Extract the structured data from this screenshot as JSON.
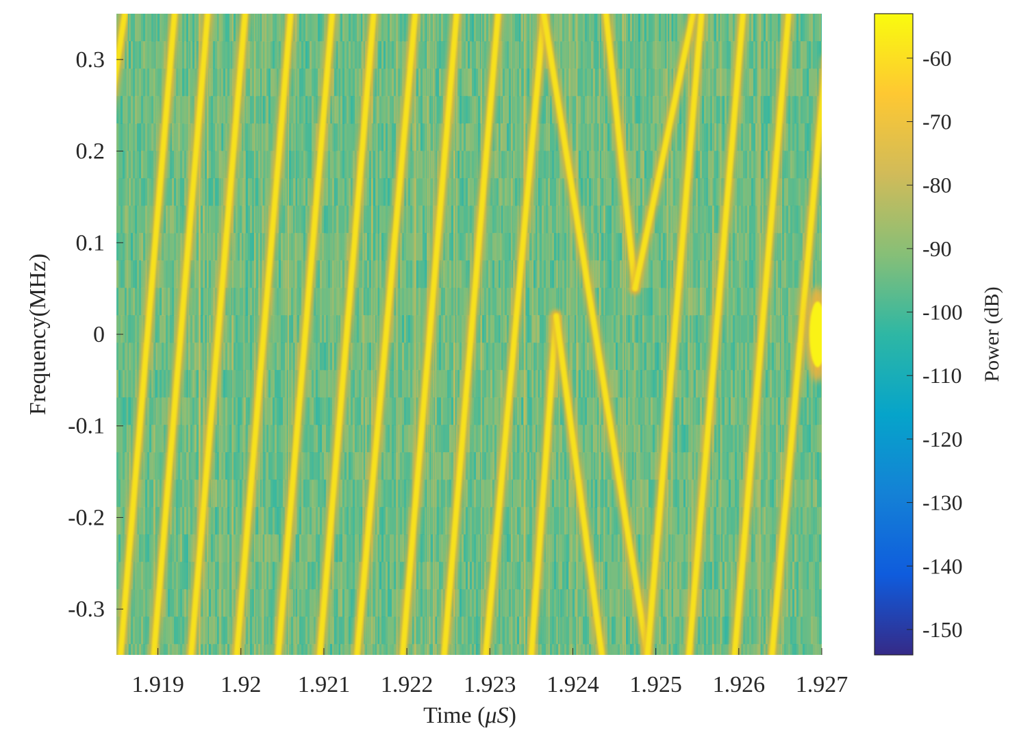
{
  "chart_data": {
    "type": "heatmap",
    "subtype": "spectrogram",
    "title": "",
    "xlabel": "Time (μS)",
    "xlabel_prefix": "Time (",
    "xlabel_mu": "μ",
    "xlabel_unit": "S",
    "xlabel_suffix": ")",
    "ylabel": "Frequency(MHz)",
    "xlim": [
      1.9185,
      1.927
    ],
    "ylim": [
      -0.35,
      0.35
    ],
    "x_ticks": [
      1.919,
      1.92,
      1.921,
      1.922,
      1.923,
      1.924,
      1.925,
      1.926,
      1.927
    ],
    "x_tick_labels": [
      "1.919",
      "1.92",
      "1.921",
      "1.922",
      "1.923",
      "1.924",
      "1.925",
      "1.926",
      "1.927"
    ],
    "y_ticks": [
      0.3,
      0.2,
      0.1,
      0,
      -0.1,
      -0.2,
      -0.3
    ],
    "y_tick_labels": [
      "0.3",
      "0.2",
      "0.1",
      "0",
      "-0.1",
      "-0.2",
      "-0.3"
    ],
    "colorbar": {
      "label": "Power (dB)",
      "clim": [
        -154,
        -53
      ],
      "ticks": [
        -60,
        -70,
        -80,
        -90,
        -100,
        -110,
        -120,
        -130,
        -140,
        -150
      ],
      "tick_labels": [
        "-60",
        "-70",
        "-80",
        "-90",
        "-100",
        "-110",
        "-120",
        "-130",
        "-140",
        "-150"
      ],
      "colormap": "parula",
      "colormap_stops": [
        "#352a87",
        "#0f5cdd",
        "#1481d6",
        "#06a4ca",
        "#2eb7a4",
        "#87bf77",
        "#d1bb59",
        "#fec832",
        "#f9fb0e"
      ]
    },
    "background_level_db": -95,
    "chirps": [
      {
        "t_start": 1.9184,
        "t_end": 1.9186,
        "f_start": 0.23,
        "f_end": 0.35
      },
      {
        "t_start": 1.91855,
        "t_end": 1.9192,
        "f_start": -0.35,
        "f_end": 0.35
      },
      {
        "t_start": 1.91895,
        "t_end": 1.9196,
        "f_start": -0.35,
        "f_end": 0.35
      },
      {
        "t_start": 1.9194,
        "t_end": 1.92005,
        "f_start": -0.35,
        "f_end": 0.35
      },
      {
        "t_start": 1.91995,
        "t_end": 1.9206,
        "f_start": -0.35,
        "f_end": 0.35
      },
      {
        "t_start": 1.92045,
        "t_end": 1.9211,
        "f_start": -0.35,
        "f_end": 0.35
      },
      {
        "t_start": 1.92095,
        "t_end": 1.9216,
        "f_start": -0.35,
        "f_end": 0.35
      },
      {
        "t_start": 1.9214,
        "t_end": 1.9221,
        "f_start": -0.35,
        "f_end": 0.35
      },
      {
        "t_start": 1.92195,
        "t_end": 1.9226,
        "f_start": -0.35,
        "f_end": 0.35
      },
      {
        "t_start": 1.92245,
        "t_end": 1.9231,
        "f_start": -0.35,
        "f_end": 0.35
      },
      {
        "t_start": 1.92295,
        "t_end": 1.92365,
        "f_start": -0.35,
        "f_end": 0.35
      },
      {
        "t_start": 1.9235,
        "t_end": 1.9238,
        "f_start": -0.35,
        "f_end": 0.02
      },
      {
        "t_start": 1.9238,
        "t_end": 1.92435,
        "f_start": 0.02,
        "f_end": -0.35
      },
      {
        "t_start": 1.92365,
        "t_end": 1.9249,
        "f_start": 0.35,
        "f_end": -0.35
      },
      {
        "t_start": 1.9244,
        "t_end": 1.92475,
        "f_start": 0.35,
        "f_end": 0.05
      },
      {
        "t_start": 1.92475,
        "t_end": 1.92545,
        "f_start": 0.05,
        "f_end": 0.35
      },
      {
        "t_start": 1.9249,
        "t_end": 1.92555,
        "f_start": -0.35,
        "f_end": 0.35
      },
      {
        "t_start": 1.9254,
        "t_end": 1.92605,
        "f_start": -0.35,
        "f_end": 0.35
      },
      {
        "t_start": 1.92595,
        "t_end": 1.9266,
        "f_start": -0.35,
        "f_end": 0.35
      },
      {
        "t_start": 1.9264,
        "t_end": 1.92705,
        "f_start": -0.35,
        "f_end": 0.3
      }
    ],
    "hotspots": [
      {
        "t": 1.92695,
        "f": 0.0,
        "level_db": -55
      }
    ]
  }
}
